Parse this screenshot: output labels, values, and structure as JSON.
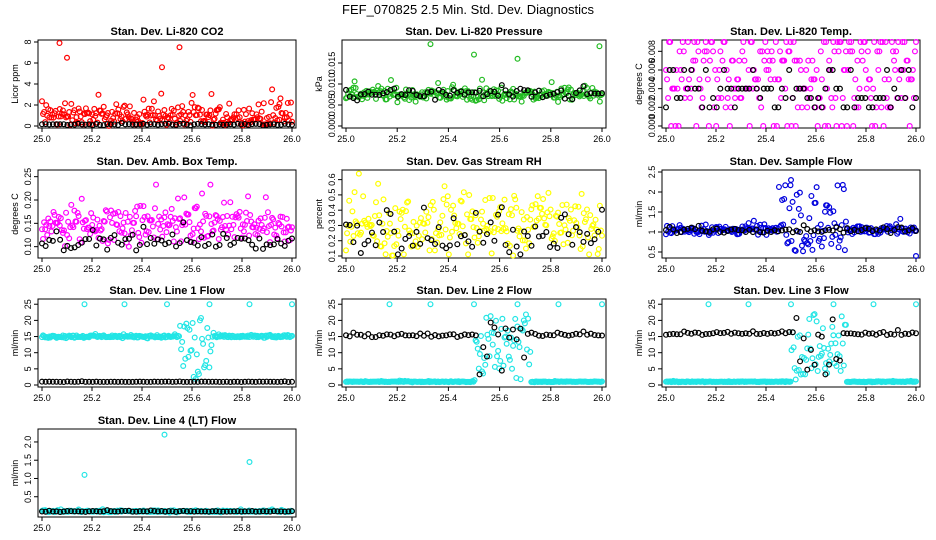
{
  "title": "FEF_070825  2.5 Min. Std. Dev. Diagnostics",
  "colors": {
    "red": "#ff0000",
    "green": "#22bb22",
    "magenta": "#ff00ff",
    "yellow": "#ffff00",
    "blue": "#0000dd",
    "cyan": "#22e5e5",
    "black": "#000000"
  },
  "chart_data": [
    {
      "type": "scatter",
      "title": "Stan. Dev. Li-820 CO2",
      "ylabel": "Licor ppm",
      "xlim": [
        25.0,
        26.0
      ],
      "ylim": [
        0,
        8
      ],
      "xticks": [
        25.0,
        25.2,
        25.4,
        25.6,
        25.8,
        26.0
      ],
      "xtick_labels": [
        "25.0",
        "25.2",
        "25.4",
        "25.6",
        "25.8",
        "26.0"
      ],
      "yticks": [
        0,
        2,
        4,
        6,
        8
      ],
      "ytick_labels": [
        "0",
        "2",
        "4",
        "6",
        "8"
      ],
      "series": [
        {
          "color": "red",
          "baseline": 0.9,
          "spread": 0.8,
          "outliers": [
            [
              25.07,
              7.9
            ],
            [
              25.1,
              6.5
            ],
            [
              25.55,
              7.5
            ],
            [
              25.48,
              5.6
            ],
            [
              25.95,
              2.1
            ]
          ]
        },
        {
          "color": "black",
          "baseline": 0.15,
          "spread": 0.05
        }
      ]
    },
    {
      "type": "scatter",
      "title": "Stan. Dev. Li-820 Pressure",
      "ylabel": "kPa",
      "xlim": [
        25.0,
        26.0
      ],
      "ylim": [
        0,
        0.02
      ],
      "xticks": [
        25.0,
        25.2,
        25.4,
        25.6,
        25.8,
        26.0
      ],
      "xtick_labels": [
        "25.0",
        "25.2",
        "25.4",
        "25.6",
        "25.8",
        "26.0"
      ],
      "yticks": [
        0,
        0.005,
        0.01,
        0.015
      ],
      "ytick_labels": [
        "0.000",
        "0.005",
        "0.010",
        "0.015"
      ],
      "series": [
        {
          "color": "green",
          "baseline": 0.0075,
          "spread": 0.0012,
          "outliers": [
            [
              25.33,
              0.0195
            ],
            [
              25.5,
              0.017
            ],
            [
              25.67,
              0.016
            ],
            [
              25.99,
              0.019
            ],
            [
              25.03,
              0.007
            ]
          ]
        },
        {
          "color": "black",
          "baseline": 0.0075,
          "spread": 0.001
        }
      ]
    },
    {
      "type": "scatter",
      "title": "Stan. Dev. Li-820 Temp.",
      "ylabel": "degrees C",
      "xlim": [
        25.0,
        26.0
      ],
      "ylim": [
        0,
        0.009
      ],
      "xticks": [
        25.0,
        25.2,
        25.4,
        25.6,
        25.8,
        26.0
      ],
      "xtick_labels": [
        "25.0",
        "25.2",
        "25.4",
        "25.6",
        "25.8",
        "26.0"
      ],
      "yticks": [
        0,
        0.002,
        0.004,
        0.006,
        0.008
      ],
      "ytick_labels": [
        "0.000",
        "0.002",
        "0.004",
        "0.006",
        "0.008"
      ],
      "series": [
        {
          "color": "magenta",
          "levels": [
            0,
            0.002,
            0.003,
            0.004,
            0.005,
            0.006,
            0.007,
            0.008,
            0.009
          ]
        },
        {
          "color": "black",
          "levels": [
            0.002,
            0.003,
            0.004,
            0.006
          ]
        }
      ]
    },
    {
      "type": "scatter",
      "title": "Stan. Dev. Amb. Box Temp.",
      "ylabel": "degrees C",
      "xlim": [
        25.0,
        26.0
      ],
      "ylim": [
        0.08,
        0.26
      ],
      "xticks": [
        25.0,
        25.2,
        25.4,
        25.6,
        25.8,
        26.0
      ],
      "xtick_labels": [
        "25.0",
        "25.2",
        "25.4",
        "25.6",
        "25.8",
        "26.0"
      ],
      "yticks": [
        0.1,
        0.15,
        0.2,
        0.25
      ],
      "ytick_labels": [
        "0.10",
        "0.15",
        "0.20",
        "0.25"
      ],
      "series": [
        {
          "color": "magenta",
          "baseline": 0.145,
          "spread": 0.03
        },
        {
          "color": "black",
          "baseline": 0.11,
          "spread": 0.012
        }
      ]
    },
    {
      "type": "scatter",
      "title": "Stan. Dev. Gas Stream RH",
      "ylabel": "percent",
      "xlim": [
        25.0,
        26.0
      ],
      "ylim": [
        0.1,
        0.65
      ],
      "xticks": [
        25.0,
        25.2,
        25.4,
        25.6,
        25.8,
        26.0
      ],
      "xtick_labels": [
        "25.0",
        "25.2",
        "25.4",
        "25.6",
        "25.8",
        "26.0"
      ],
      "yticks": [
        0.1,
        0.2,
        0.3,
        0.4,
        0.5,
        0.6
      ],
      "ytick_labels": [
        "0.1",
        "0.2",
        "0.3",
        "0.4",
        "0.5",
        "0.6"
      ],
      "series": [
        {
          "color": "yellow",
          "baseline": 0.3,
          "spread": 0.15
        },
        {
          "color": "black",
          "baseline": 0.22,
          "spread": 0.1
        }
      ]
    },
    {
      "type": "scatter",
      "title": "Stan. Dev. Sample Flow",
      "ylabel": "ml/min",
      "xlim": [
        25.0,
        26.0
      ],
      "ylim": [
        0.4,
        2.5
      ],
      "xticks": [
        25.0,
        25.2,
        25.4,
        25.6,
        25.8,
        26.0
      ],
      "xtick_labels": [
        "25.0",
        "25.2",
        "25.4",
        "25.6",
        "25.8",
        "26.0"
      ],
      "yticks": [
        0.5,
        1.0,
        1.5,
        2.0,
        2.5
      ],
      "ytick_labels": [
        "0.5",
        "1",
        "1.5",
        "2",
        "2.5"
      ],
      "series": [
        {
          "color": "blue",
          "baseline": 1.05,
          "spread": 0.08,
          "disturb": [
            25.45,
            25.72
          ],
          "outliers": [
            [
              25.5,
              2.3
            ],
            [
              26.0,
              0.4
            ]
          ]
        },
        {
          "color": "black",
          "baseline": 1.05,
          "spread": 0.05
        }
      ]
    },
    {
      "type": "scatter",
      "title": "Stan. Dev. Line 1 Flow",
      "ylabel": "ml/min",
      "xlim": [
        25.0,
        26.0
      ],
      "ylim": [
        0,
        26
      ],
      "xticks": [
        25.0,
        25.2,
        25.4,
        25.6,
        25.8,
        26.0
      ],
      "xtick_labels": [
        "25.0",
        "25.2",
        "25.4",
        "25.6",
        "25.8",
        "26.0"
      ],
      "yticks": [
        0,
        5,
        10,
        15,
        20,
        25
      ],
      "ytick_labels": [
        "0",
        "5",
        "10",
        "15",
        "20",
        "25"
      ],
      "series": [
        {
          "color": "cyan",
          "baseline": 15,
          "spread": 0.3,
          "disturb": [
            25.55,
            25.68
          ],
          "outliers": [
            [
              25.17,
              25
            ],
            [
              25.33,
              25
            ],
            [
              25.5,
              25
            ],
            [
              25.67,
              25
            ],
            [
              25.83,
              25
            ],
            [
              26.0,
              25
            ]
          ]
        },
        {
          "color": "black",
          "baseline": 1,
          "spread": 0.05
        }
      ]
    },
    {
      "type": "scatter",
      "title": "Stan. Dev. Line 2 Flow",
      "ylabel": "ml/min",
      "xlim": [
        25.0,
        26.0
      ],
      "ylim": [
        0,
        26
      ],
      "xticks": [
        25.0,
        25.2,
        25.4,
        25.6,
        25.8,
        26.0
      ],
      "xtick_labels": [
        "25.0",
        "25.2",
        "25.4",
        "25.6",
        "25.8",
        "26.0"
      ],
      "yticks": [
        0,
        5,
        10,
        15,
        20,
        25
      ],
      "ytick_labels": [
        "0",
        "5",
        "10",
        "15",
        "20",
        "25"
      ],
      "series": [
        {
          "color": "cyan",
          "baseline": 1,
          "spread": 0.1,
          "disturb": [
            25.5,
            25.72
          ],
          "outliers": [
            [
              25.17,
              25
            ],
            [
              25.33,
              25
            ],
            [
              25.5,
              25
            ],
            [
              25.67,
              25
            ],
            [
              25.83,
              25
            ],
            [
              26.0,
              25
            ]
          ]
        },
        {
          "color": "black",
          "baseline": 15.5,
          "spread": 0.4,
          "disturb": [
            25.52,
            25.7
          ]
        }
      ]
    },
    {
      "type": "scatter",
      "title": "Stan. Dev. Line 3 Flow",
      "ylabel": "ml/min",
      "xlim": [
        25.0,
        26.0
      ],
      "ylim": [
        0,
        26
      ],
      "xticks": [
        25.0,
        25.2,
        25.4,
        25.6,
        25.8,
        26.0
      ],
      "xtick_labels": [
        "25.0",
        "25.2",
        "25.4",
        "25.6",
        "25.8",
        "26.0"
      ],
      "yticks": [
        0,
        5,
        10,
        15,
        20,
        25
      ],
      "ytick_labels": [
        "0",
        "5",
        "10",
        "15",
        "20",
        "25"
      ],
      "series": [
        {
          "color": "cyan",
          "baseline": 1,
          "spread": 0.1,
          "disturb": [
            25.5,
            25.72
          ],
          "outliers": [
            [
              25.17,
              25
            ],
            [
              25.33,
              25
            ],
            [
              25.5,
              25
            ],
            [
              25.67,
              25
            ],
            [
              25.83,
              25
            ],
            [
              26.0,
              25
            ]
          ]
        },
        {
          "color": "black",
          "baseline": 16,
          "spread": 0.4,
          "disturb": [
            25.52,
            25.7
          ]
        }
      ]
    },
    {
      "type": "scatter",
      "title": "Stan. Dev. Line 4 (LT) Flow",
      "ylabel": "ml/min",
      "xlim": [
        25.0,
        26.0
      ],
      "ylim": [
        0,
        2.3
      ],
      "xticks": [
        25.0,
        25.2,
        25.4,
        25.6,
        25.8,
        26.0
      ],
      "xtick_labels": [
        "25.0",
        "25.2",
        "25.4",
        "25.6",
        "25.8",
        "26.0"
      ],
      "yticks": [
        0.5,
        1.0,
        1.5,
        2.0
      ],
      "ytick_labels": [
        "0.5",
        "1.0",
        "1.5",
        "2.0"
      ],
      "series": [
        {
          "color": "cyan",
          "baseline": 0.1,
          "spread": 0.02,
          "outliers": [
            [
              25.17,
              1.1
            ],
            [
              25.49,
              2.2
            ],
            [
              25.83,
              1.45
            ]
          ]
        },
        {
          "color": "black",
          "baseline": 0.1,
          "spread": 0.01
        }
      ]
    }
  ]
}
